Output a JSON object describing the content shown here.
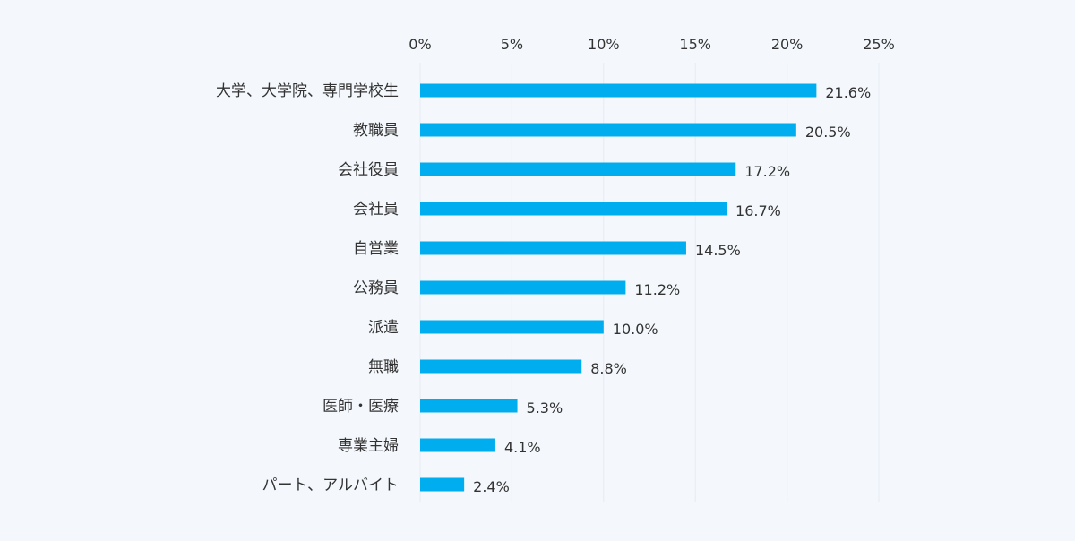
{
  "chart_data": {
    "type": "bar",
    "orientation": "horizontal",
    "title": "",
    "xlabel": "",
    "ylabel": "",
    "categories": [
      "大学、大学院、専門学校生",
      "教職員",
      "会社役員",
      "会社員",
      "自営業",
      "公務員",
      "派遣",
      "無職",
      "医師・医療",
      "専業主婦",
      "パート、アルバイト"
    ],
    "values": [
      21.6,
      20.5,
      17.2,
      16.7,
      14.5,
      11.2,
      10.0,
      8.8,
      5.3,
      4.1,
      2.4
    ],
    "value_labels": [
      "21.6%",
      "20.5%",
      "17.2%",
      "16.7%",
      "14.5%",
      "11.2%",
      "10.0%",
      "8.8%",
      "5.3%",
      "4.1%",
      "2.4%"
    ],
    "xlim": [
      0,
      25
    ],
    "x_ticks": [
      0,
      5,
      10,
      15,
      20,
      25
    ],
    "x_tick_labels": [
      "0%",
      "5%",
      "10%",
      "15%",
      "20%",
      "25%"
    ],
    "axis_position": "top",
    "grid": true,
    "legend": "none",
    "colors": {
      "bar": "#00aeef",
      "background": "#f4f8fc",
      "grid": "#e4ecf3",
      "text": "#333333"
    }
  }
}
